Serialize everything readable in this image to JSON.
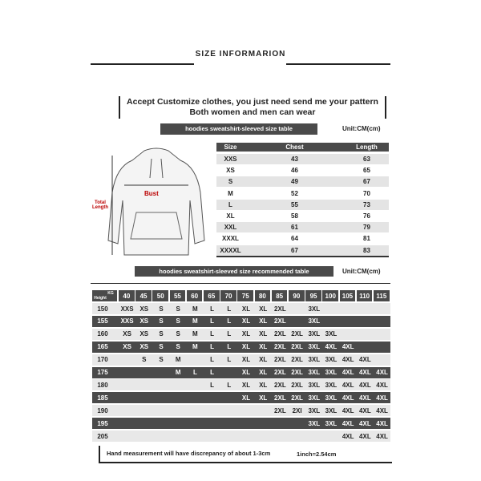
{
  "header": {
    "title": "SIZE INFORMARION"
  },
  "banner": {
    "line1": "Accept Customize clothes, you just need send me your pattern",
    "line2": "Both women and men can wear"
  },
  "size_table": {
    "caption": "hoodies sweatshirt-sleeved size table",
    "unit": "Unit:CM(cm)",
    "diagram": {
      "bust": "Bust",
      "length": "Total Length"
    },
    "columns": [
      "Size",
      "Chest",
      "Length"
    ],
    "rows": [
      [
        "XXS",
        "43",
        "63"
      ],
      [
        "XS",
        "46",
        "65"
      ],
      [
        "S",
        "49",
        "67"
      ],
      [
        "M",
        "52",
        "70"
      ],
      [
        "L",
        "55",
        "73"
      ],
      [
        "XL",
        "58",
        "76"
      ],
      [
        "XXL",
        "61",
        "79"
      ],
      [
        "XXXL",
        "64",
        "81"
      ],
      [
        "XXXXL",
        "67",
        "83"
      ]
    ]
  },
  "recommend_table": {
    "caption": "hoodies sweatshirt-sleeved size recommended table",
    "unit": "Unit:CM(cm)",
    "corner": {
      "kg": "KG",
      "height": "Height"
    },
    "columns": [
      "40",
      "45",
      "50",
      "55",
      "60",
      "65",
      "70",
      "75",
      "80",
      "85",
      "90",
      "95",
      "100",
      "105",
      "110",
      "115"
    ],
    "rows": [
      {
        "height": "150",
        "sizes": {
          "40": "XXS",
          "45": "XS",
          "50": "S",
          "55": "S",
          "60": "M",
          "65": "L",
          "70": "L",
          "75": "XL",
          "80": "XL",
          "85": "2XL",
          "95": "3XL"
        }
      },
      {
        "height": "155",
        "sizes": {
          "40": "XXS",
          "45": "XS",
          "50": "S",
          "55": "S",
          "60": "M",
          "65": "L",
          "70": "L",
          "75": "XL",
          "80": "XL",
          "85": "2XL",
          "95": "3XL"
        }
      },
      {
        "height": "160",
        "sizes": {
          "40": "XS",
          "45": "XS",
          "50": "S",
          "55": "S",
          "60": "M",
          "65": "L",
          "70": "L",
          "75": "XL",
          "80": "XL",
          "85": "2XL",
          "90": "2XL",
          "95": "3XL",
          "100": "3XL"
        }
      },
      {
        "height": "165",
        "sizes": {
          "40": "XS",
          "45": "XS",
          "50": "S",
          "55": "S",
          "60": "M",
          "65": "L",
          "70": "L",
          "75": "XL",
          "80": "XL",
          "85": "2XL",
          "90": "2XL",
          "95": "3XL",
          "100": "4XL",
          "105": "4XL"
        }
      },
      {
        "height": "170",
        "sizes": {
          "45": "S",
          "50": "S",
          "55": "M",
          "65": "L",
          "70": "L",
          "75": "XL",
          "80": "XL",
          "85": "2XL",
          "90": "2XL",
          "95": "3XL",
          "100": "3XL",
          "105": "4XL",
          "110": "4XL"
        }
      },
      {
        "height": "175",
        "sizes": {
          "55": "M",
          "60": "L",
          "65": "L",
          "75": "XL",
          "80": "XL",
          "85": "2XL",
          "90": "2XL",
          "95": "3XL",
          "100": "3XL",
          "105": "4XL",
          "110": "4XL",
          "115": "4XL"
        }
      },
      {
        "height": "180",
        "sizes": {
          "65": "L",
          "70": "L",
          "75": "XL",
          "80": "XL",
          "85": "2XL",
          "90": "2XL",
          "95": "3XL",
          "100": "3XL",
          "105": "4XL",
          "110": "4XL",
          "115": "4XL"
        }
      },
      {
        "height": "185",
        "sizes": {
          "75": "XL",
          "80": "XL",
          "85": "2XL",
          "90": "2XL",
          "95": "3XL",
          "100": "3XL",
          "105": "4XL",
          "110": "4XL",
          "115": "4XL"
        }
      },
      {
        "height": "190",
        "sizes": {
          "85": "2XL",
          "90": "2XI",
          "95": "3XL",
          "100": "3XL",
          "105": "4XL",
          "110": "4XL",
          "115": "4XL"
        }
      },
      {
        "height": "195",
        "sizes": {
          "95": "3XL",
          "100": "3XL",
          "105": "4XL",
          "110": "4XL",
          "115": "4XL"
        }
      },
      {
        "height": "205",
        "sizes": {
          "105": "4XL",
          "110": "4XL",
          "115": "4XL"
        }
      }
    ]
  },
  "footer": {
    "note": "Hand measurement will have discrepancy of about  1-3cm",
    "inch": "1inch=2.54cm"
  }
}
